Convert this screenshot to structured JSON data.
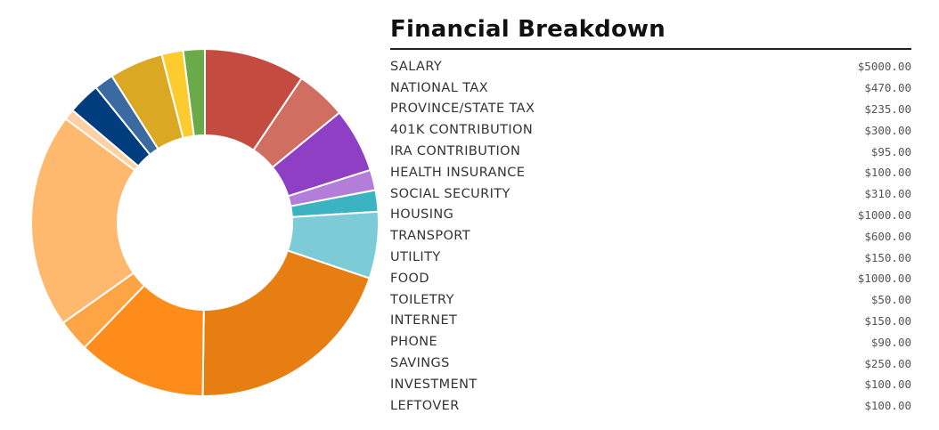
{
  "title": "Financial Breakdown",
  "rows": [
    {
      "label": "SALARY",
      "value": "$5000.00"
    },
    {
      "label": "NATIONAL TAX",
      "value": "$470.00"
    },
    {
      "label": "PROVINCE/STATE TAX",
      "value": "$235.00"
    },
    {
      "label": "401K CONTRIBUTION",
      "value": "$300.00"
    },
    {
      "label": "IRA CONTRIBUTION",
      "value": "$95.00"
    },
    {
      "label": "HEALTH INSURANCE",
      "value": "$100.00"
    },
    {
      "label": "SOCIAL SECURITY",
      "value": "$310.00"
    },
    {
      "label": "HOUSING",
      "value": "$1000.00"
    },
    {
      "label": "TRANSPORT",
      "value": "$600.00"
    },
    {
      "label": "UTILITY",
      "value": "$150.00"
    },
    {
      "label": "FOOD",
      "value": "$1000.00"
    },
    {
      "label": "TOILETRY",
      "value": "$50.00"
    },
    {
      "label": "INTERNET",
      "value": "$150.00"
    },
    {
      "label": "PHONE",
      "value": "$90.00"
    },
    {
      "label": "SAVINGS",
      "value": "$250.00"
    },
    {
      "label": "INVESTMENT",
      "value": "$100.00"
    },
    {
      "label": "LEFTOVER",
      "value": "$100.00"
    }
  ],
  "chart_data": {
    "type": "pie",
    "donut": true,
    "categories": [
      "NATIONAL TAX",
      "PROVINCE/STATE TAX",
      "401K CONTRIBUTION",
      "IRA CONTRIBUTION",
      "HEALTH INSURANCE",
      "SOCIAL SECURITY",
      "HOUSING",
      "TRANSPORT",
      "UTILITY",
      "FOOD",
      "TOILETRY",
      "INTERNET",
      "PHONE",
      "SAVINGS",
      "INVESTMENT",
      "LEFTOVER"
    ],
    "values": [
      470,
      235,
      300,
      95,
      100,
      310,
      1000,
      600,
      150,
      1000,
      50,
      150,
      90,
      250,
      100,
      100
    ],
    "colors": [
      "#c44b3f",
      "#d16e62",
      "#8e3fc4",
      "#b27ed9",
      "#3cb3c0",
      "#7ccbd6",
      "#e67e12",
      "#fe8c1a",
      "#fda544",
      "#ffb96e",
      "#fdd1a6",
      "#003d7f",
      "#3a6aa0",
      "#dba824",
      "#fbcb2f",
      "#6aaa4a"
    ],
    "start_angle_deg": 0,
    "direction": "clockwise",
    "legend": "none"
  }
}
